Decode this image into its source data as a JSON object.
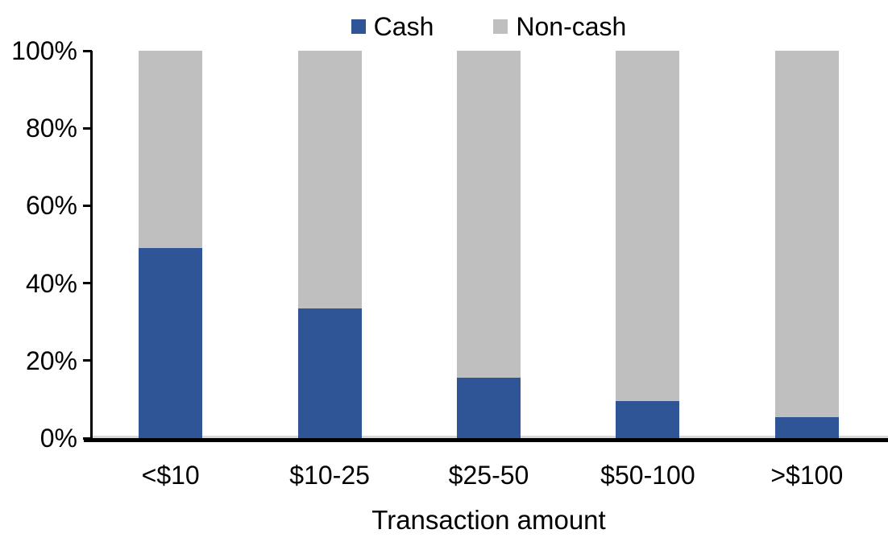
{
  "chart_data": {
    "type": "bar",
    "stacked": true,
    "title": "",
    "categories": [
      "<$10",
      "$10-25",
      "$25-50",
      "$50-100",
      ">$100"
    ],
    "series": [
      {
        "name": "Cash",
        "color": "#2F5597",
        "values": [
          49,
          33.5,
          15.5,
          9.5,
          5.5
        ]
      },
      {
        "name": "Non-cash",
        "color": "#BFBFBF",
        "values": [
          51,
          66.5,
          84.5,
          90.5,
          94.5
        ]
      }
    ],
    "xlabel": "Transaction amount",
    "ylabel": "",
    "ylim": [
      0,
      100
    ],
    "yticks": [
      "0%",
      "20%",
      "40%",
      "60%",
      "80%",
      "100%"
    ],
    "legend_position": "top-center",
    "grid": false,
    "axis_color": "#000000",
    "text_color": "#000000",
    "zero_gridline_color": "#D9D9D9",
    "background_color": "#FFFFFF"
  }
}
